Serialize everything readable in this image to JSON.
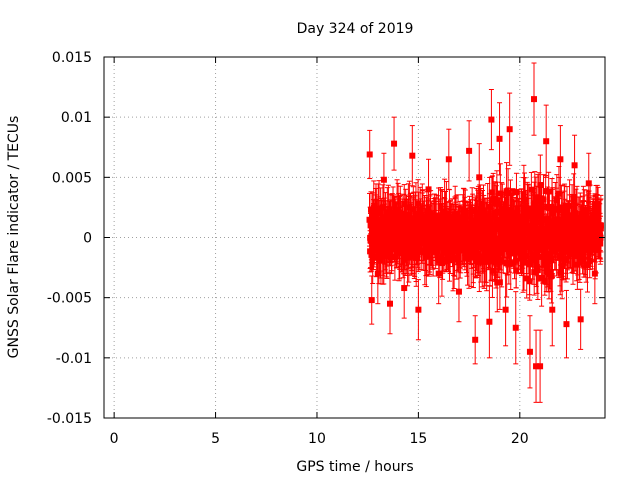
{
  "chart_data": {
    "type": "scatter",
    "title": "Day 324 of 2019",
    "xlabel": "GPS time / hours",
    "ylabel": "GNSS Solar Flare indicator / TECUs",
    "xlim": [
      -0.5,
      24.2
    ],
    "ylim": [
      -0.015,
      0.015
    ],
    "x_ticks": [
      {
        "v": 0,
        "label": "0"
      },
      {
        "v": 5,
        "label": "5"
      },
      {
        "v": 10,
        "label": "10"
      },
      {
        "v": 15,
        "label": "15"
      },
      {
        "v": 20,
        "label": "20"
      }
    ],
    "y_ticks": [
      {
        "v": -0.015,
        "label": "-0.015"
      },
      {
        "v": -0.01,
        "label": "-0.01"
      },
      {
        "v": -0.005,
        "label": "-0.005"
      },
      {
        "v": 0,
        "label": "0"
      },
      {
        "v": 0.005,
        "label": "0.005"
      },
      {
        "v": 0.01,
        "label": "0.01"
      },
      {
        "v": 0.015,
        "label": "0.015"
      }
    ],
    "grid": true,
    "series": [
      {
        "color": "#ff0000",
        "marker": "square",
        "error_bars": true,
        "x_range": [
          12.6,
          24.0
        ],
        "points": [
          {
            "x": 12.6,
            "y": 0.0069,
            "err": 0.002
          },
          {
            "x": 12.7,
            "y": -0.0052,
            "err": 0.002
          },
          {
            "x": 12.8,
            "y": 0.0025,
            "err": 0.0022
          },
          {
            "x": 13.0,
            "y": -0.003,
            "err": 0.0025
          },
          {
            "x": 13.3,
            "y": 0.0048,
            "err": 0.0022
          },
          {
            "x": 13.6,
            "y": -0.0055,
            "err": 0.0025
          },
          {
            "x": 13.8,
            "y": 0.0078,
            "err": 0.0022
          },
          {
            "x": 14.0,
            "y": 0.002,
            "err": 0.0025
          },
          {
            "x": 14.3,
            "y": -0.0042,
            "err": 0.0025
          },
          {
            "x": 14.7,
            "y": 0.0068,
            "err": 0.0025
          },
          {
            "x": 15.0,
            "y": -0.006,
            "err": 0.0025
          },
          {
            "x": 15.5,
            "y": 0.004,
            "err": 0.0025
          },
          {
            "x": 16.0,
            "y": -0.003,
            "err": 0.0025
          },
          {
            "x": 16.5,
            "y": 0.0065,
            "err": 0.0025
          },
          {
            "x": 17.0,
            "y": -0.0045,
            "err": 0.0025
          },
          {
            "x": 17.5,
            "y": 0.0072,
            "err": 0.0025
          },
          {
            "x": 17.8,
            "y": -0.0085,
            "err": 0.002
          },
          {
            "x": 18.0,
            "y": 0.005,
            "err": 0.0028
          },
          {
            "x": 18.5,
            "y": -0.007,
            "err": 0.003
          },
          {
            "x": 18.6,
            "y": 0.0098,
            "err": 0.0025
          },
          {
            "x": 19.0,
            "y": 0.0082,
            "err": 0.003
          },
          {
            "x": 19.3,
            "y": -0.006,
            "err": 0.003
          },
          {
            "x": 19.5,
            "y": 0.009,
            "err": 0.003
          },
          {
            "x": 19.8,
            "y": -0.0075,
            "err": 0.003
          },
          {
            "x": 20.2,
            "y": 0.003,
            "err": 0.003
          },
          {
            "x": 20.5,
            "y": -0.0095,
            "err": 0.003
          },
          {
            "x": 20.7,
            "y": 0.0115,
            "err": 0.003
          },
          {
            "x": 20.8,
            "y": -0.0107,
            "err": 0.003
          },
          {
            "x": 21.0,
            "y": -0.0107,
            "err": 0.003
          },
          {
            "x": 21.3,
            "y": 0.008,
            "err": 0.003
          },
          {
            "x": 21.6,
            "y": -0.006,
            "err": 0.003
          },
          {
            "x": 22.0,
            "y": 0.0065,
            "err": 0.0028
          },
          {
            "x": 22.3,
            "y": -0.0072,
            "err": 0.0028
          },
          {
            "x": 22.7,
            "y": 0.006,
            "err": 0.0025
          },
          {
            "x": 23.0,
            "y": -0.0068,
            "err": 0.0025
          },
          {
            "x": 23.4,
            "y": 0.0045,
            "err": 0.0025
          },
          {
            "x": 23.7,
            "y": -0.003,
            "err": 0.0025
          },
          {
            "x": 24.0,
            "y": 0.001,
            "err": 0.0022
          }
        ]
      }
    ]
  }
}
